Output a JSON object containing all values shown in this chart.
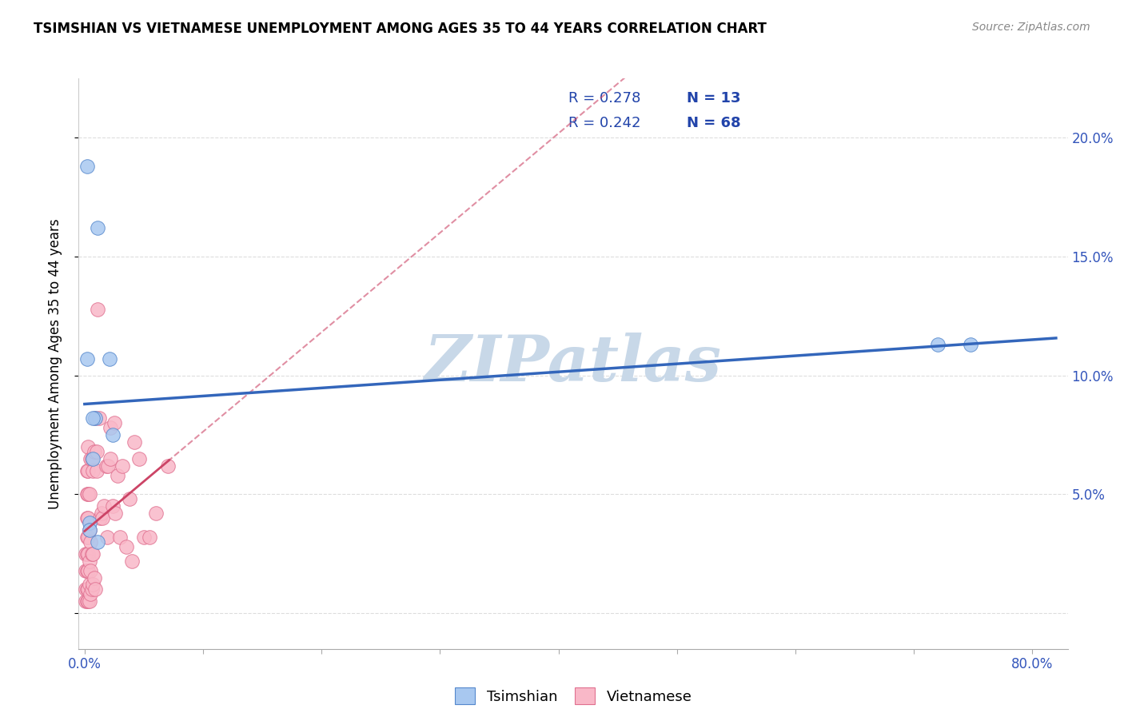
{
  "title": "TSIMSHIAN VS VIETNAMESE UNEMPLOYMENT AMONG AGES 35 TO 44 YEARS CORRELATION CHART",
  "source": "Source: ZipAtlas.com",
  "ylabel": "Unemployment Among Ages 35 to 44 years",
  "xlim": [
    -0.005,
    0.83
  ],
  "ylim": [
    -0.015,
    0.225
  ],
  "x_tick_positions": [
    0.0,
    0.1,
    0.2,
    0.3,
    0.4,
    0.5,
    0.6,
    0.7,
    0.8
  ],
  "x_tick_labels": [
    "0.0%",
    "",
    "",
    "",
    "",
    "",
    "",
    "",
    "80.0%"
  ],
  "y_tick_positions": [
    0.0,
    0.05,
    0.1,
    0.15,
    0.2
  ],
  "y_tick_labels": [
    "",
    "5.0%",
    "10.0%",
    "15.0%",
    "20.0%"
  ],
  "legend_r_tsimshian": "R = 0.278",
  "legend_n_tsimshian": "N = 13",
  "legend_r_vietnamese": "R = 0.242",
  "legend_n_vietnamese": "N = 68",
  "tsimshian_fill": "#a8c8f0",
  "tsimshian_edge": "#5588cc",
  "vietnamese_fill": "#f9b8c8",
  "vietnamese_edge": "#e07090",
  "tsimshian_line_color": "#3366bb",
  "vietnamese_line_color": "#cc4466",
  "legend_text_color": "#2244aa",
  "tick_color": "#3355bb",
  "watermark_color": "#c8d8e8",
  "grid_color": "#dddddd",
  "tsimshian_x": [
    0.002,
    0.011,
    0.021,
    0.002,
    0.004,
    0.007,
    0.009,
    0.007,
    0.011,
    0.024,
    0.72,
    0.748,
    0.004
  ],
  "tsimshian_y": [
    0.188,
    0.162,
    0.107,
    0.107,
    0.038,
    0.065,
    0.082,
    0.082,
    0.03,
    0.075,
    0.113,
    0.113,
    0.035
  ],
  "vietnamese_x": [
    0.001,
    0.001,
    0.001,
    0.001,
    0.002,
    0.002,
    0.002,
    0.002,
    0.002,
    0.002,
    0.002,
    0.002,
    0.003,
    0.003,
    0.003,
    0.003,
    0.003,
    0.003,
    0.003,
    0.003,
    0.003,
    0.004,
    0.004,
    0.004,
    0.004,
    0.004,
    0.005,
    0.005,
    0.005,
    0.005,
    0.006,
    0.006,
    0.006,
    0.007,
    0.007,
    0.007,
    0.008,
    0.008,
    0.009,
    0.009,
    0.01,
    0.01,
    0.011,
    0.012,
    0.013,
    0.014,
    0.015,
    0.016,
    0.018,
    0.019,
    0.02,
    0.022,
    0.022,
    0.024,
    0.025,
    0.026,
    0.028,
    0.03,
    0.032,
    0.035,
    0.038,
    0.04,
    0.042,
    0.046,
    0.05,
    0.055,
    0.06,
    0.07
  ],
  "vietnamese_y": [
    0.005,
    0.01,
    0.018,
    0.025,
    0.005,
    0.01,
    0.018,
    0.025,
    0.032,
    0.04,
    0.05,
    0.06,
    0.005,
    0.01,
    0.018,
    0.025,
    0.032,
    0.04,
    0.05,
    0.06,
    0.07,
    0.005,
    0.012,
    0.022,
    0.035,
    0.05,
    0.008,
    0.018,
    0.03,
    0.065,
    0.01,
    0.025,
    0.065,
    0.012,
    0.025,
    0.06,
    0.015,
    0.068,
    0.01,
    0.082,
    0.06,
    0.068,
    0.128,
    0.082,
    0.04,
    0.042,
    0.04,
    0.045,
    0.062,
    0.032,
    0.062,
    0.065,
    0.078,
    0.045,
    0.08,
    0.042,
    0.058,
    0.032,
    0.062,
    0.028,
    0.048,
    0.022,
    0.072,
    0.065,
    0.032,
    0.032,
    0.042,
    0.062
  ]
}
